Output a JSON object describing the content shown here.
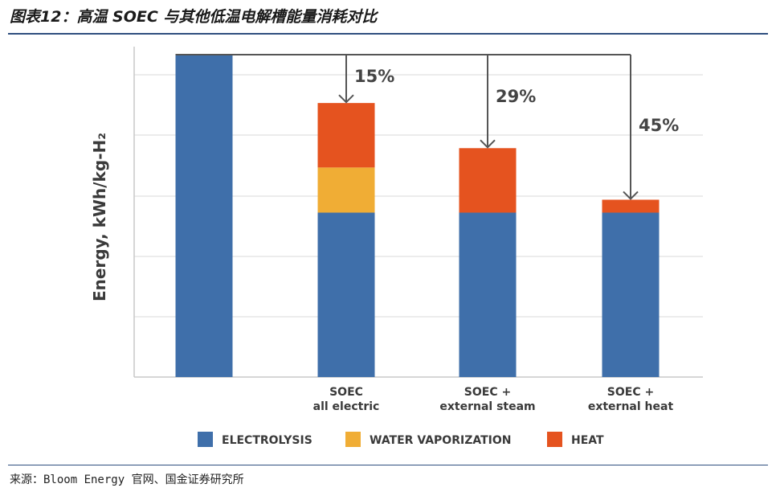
{
  "header": {
    "title": "图表12：高温 SOEC 与其他低温电解槽能量消耗对比"
  },
  "footer": {
    "source": "来源：Bloom Energy 官网、国金证券研究所"
  },
  "chart_data": {
    "type": "bar",
    "stacked": true,
    "ylabel": "Energy, kWh/kg-H₂",
    "categories": [
      "",
      "SOEC|all electric",
      "SOEC +|external steam",
      "SOEC +|external heat"
    ],
    "series": [
      {
        "name": "ELECTROLYSIS",
        "color": "#3f6faa",
        "values": [
          100,
          51,
          51,
          51
        ]
      },
      {
        "name": "WATER VAPORIZATION",
        "color": "#f0ad35",
        "values": [
          0,
          14,
          0,
          0
        ]
      },
      {
        "name": "HEAT",
        "color": "#e5531f",
        "values": [
          0,
          20,
          20,
          4
        ]
      }
    ],
    "annotations": [
      "15%",
      "29%",
      "45%"
    ],
    "ylim": [
      0,
      100
    ],
    "grid": true,
    "legend_position": "bottom"
  }
}
